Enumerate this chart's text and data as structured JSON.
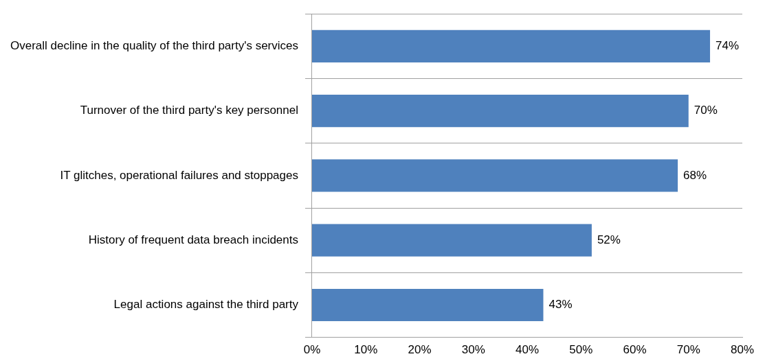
{
  "chart_data": {
    "type": "bar",
    "orientation": "horizontal",
    "categories": [
      "Overall decline in the quality of the third party's services",
      "Turnover of the third party's key personnel",
      "IT glitches, operational failures and stoppages",
      "History of frequent data breach incidents",
      "Legal actions against the third party"
    ],
    "values": [
      74,
      70,
      68,
      52,
      43
    ],
    "value_labels": [
      "74%",
      "70%",
      "68%",
      "52%",
      "43%"
    ],
    "color": "#4f81bd",
    "xlim": [
      0,
      80
    ],
    "xticks": [
      {
        "value": 0,
        "label": "0%"
      },
      {
        "value": 10,
        "label": "10%"
      },
      {
        "value": 20,
        "label": "20%"
      },
      {
        "value": 30,
        "label": "30%"
      },
      {
        "value": 40,
        "label": "40%"
      },
      {
        "value": 50,
        "label": "50%"
      },
      {
        "value": 60,
        "label": "60%"
      },
      {
        "value": 70,
        "label": "70%"
      },
      {
        "value": 80,
        "label": "80%"
      }
    ],
    "grid": "y",
    "legend": false
  }
}
